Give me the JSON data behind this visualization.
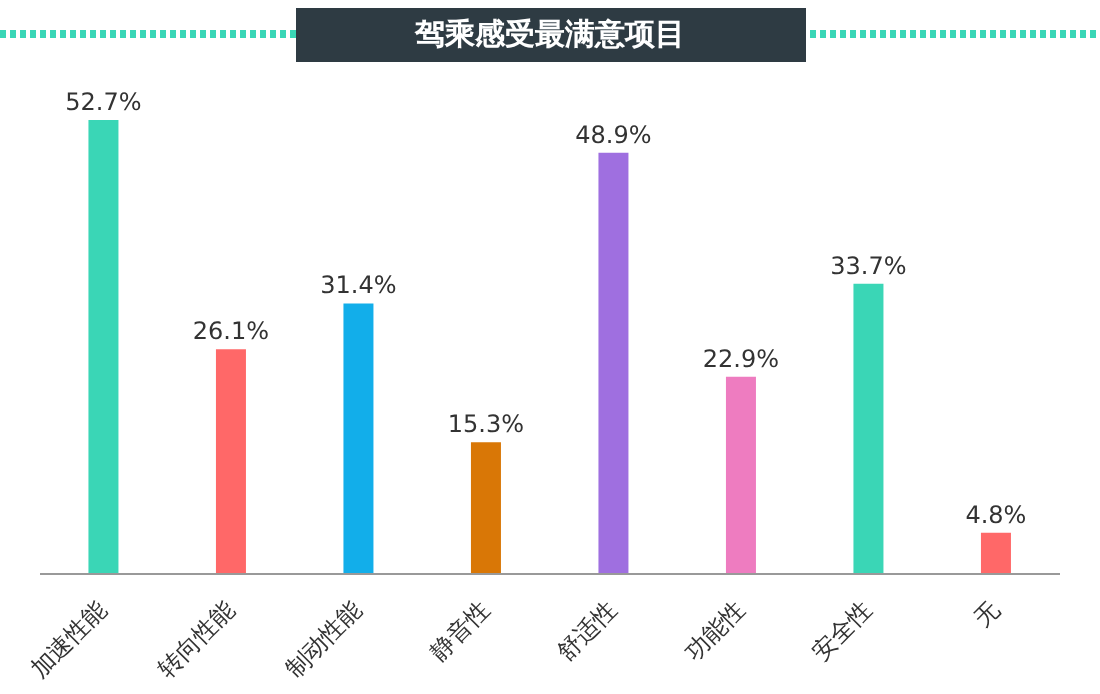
{
  "chart_data": {
    "type": "bar",
    "title": "驾乘感受最满意项目",
    "categories": [
      "加速性能",
      "转向性能",
      "制动性能",
      "静音性",
      "舒适性",
      "功能性",
      "安全性",
      "无"
    ],
    "values": [
      52.7,
      26.1,
      31.4,
      15.3,
      48.9,
      22.9,
      33.7,
      4.8
    ],
    "colors": [
      "#3ad6b6",
      "#ff6868",
      "#12aeea",
      "#d97706",
      "#9f6fe0",
      "#ee7cc0",
      "#3ad6b6",
      "#ff6868"
    ],
    "value_labels": [
      "52.7%",
      "26.1%",
      "31.4%",
      "15.3%",
      "48.9%",
      "22.9%",
      "33.7%",
      "4.8%"
    ],
    "grid": false,
    "legend": false
  }
}
